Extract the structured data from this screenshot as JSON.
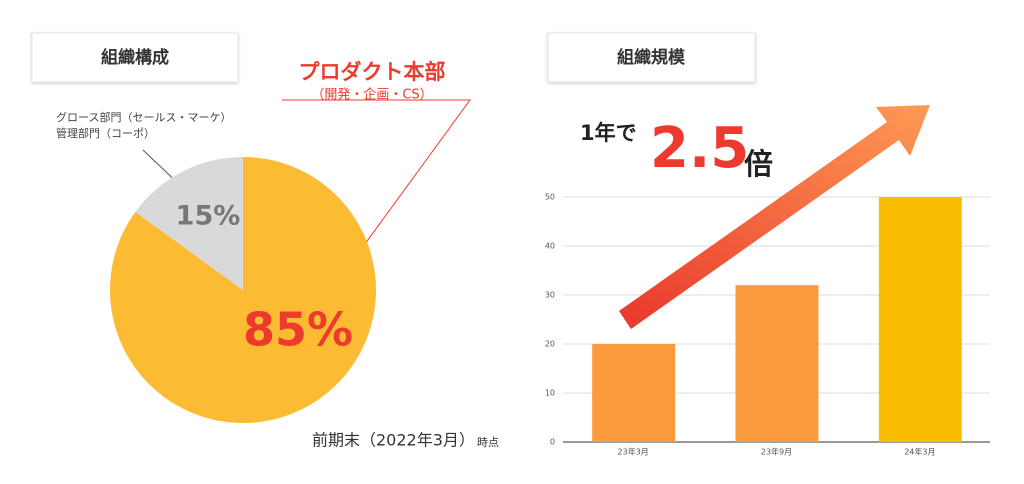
{
  "chart_data": [
    {
      "type": "pie",
      "title": "組織構成",
      "categories": [
        [
          "プロダクト本部",
          "（開発・企画・CS）"
        ],
        [
          "グロース部門（セールス・マーケ）",
          "管理部門（コーポ）"
        ]
      ],
      "values": [
        85,
        15
      ],
      "value_labels": [
        "85%",
        "15%"
      ],
      "colors": [
        "#fbbc34",
        "#d9d9d9"
      ],
      "label_colors": [
        "#ee3a2c",
        "#777777"
      ],
      "note": "前期末（2022年3月）",
      "note_suffix": "時点"
    },
    {
      "type": "bar",
      "title": "組織規模",
      "annotation": [
        "1年で",
        "2.5",
        "倍"
      ],
      "categories": [
        "23年3月",
        "23年9月",
        "24年3月"
      ],
      "values": [
        20,
        32,
        50
      ],
      "colors": [
        "#fb9a3c",
        "#fb9a3c",
        "#fbbc04"
      ],
      "ylim": [
        0,
        50
      ],
      "yticks": [
        0,
        10,
        20,
        30,
        40,
        50
      ],
      "grid": true
    }
  ]
}
